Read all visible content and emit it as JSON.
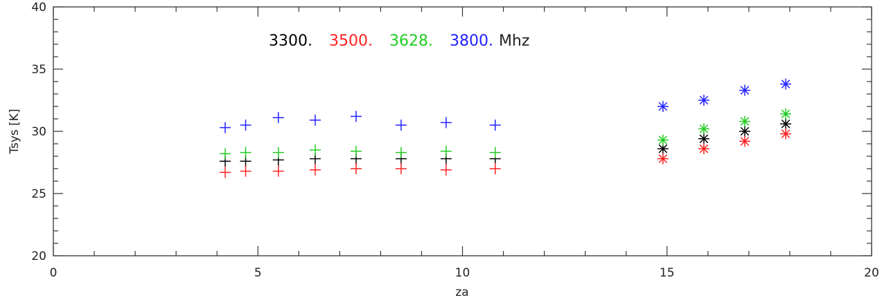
{
  "chart_data": {
    "type": "scatter",
    "title": "",
    "xlabel": "za",
    "ylabel": "Tsys [K]",
    "xlim": [
      0,
      20
    ],
    "ylim": [
      20,
      40
    ],
    "x_ticks": [
      0,
      5,
      10,
      15,
      20
    ],
    "y_ticks": [
      20,
      25,
      30,
      35,
      40
    ],
    "x_minor_step": 1,
    "y_minor_step": 1,
    "grid": false,
    "legend": {
      "placement": "top-left",
      "entries": [
        {
          "text": "3300.",
          "color": "#000000"
        },
        {
          "text": "3500.",
          "color": "#ff2020"
        },
        {
          "text": "3628.",
          "color": "#20cc20"
        },
        {
          "text": "3800.",
          "color": "#2020ff"
        }
      ],
      "suffix": "Mhz",
      "suffix_color": "#222222"
    },
    "series": [
      {
        "color": "#000000",
        "groups": [
          {
            "marker": "plus",
            "x": [
              4.2,
              4.7,
              5.5,
              6.4,
              7.4,
              8.5,
              9.6,
              10.8
            ],
            "y": [
              27.6,
              27.6,
              27.7,
              27.8,
              27.8,
              27.8,
              27.8,
              27.8
            ]
          },
          {
            "marker": "asterisk",
            "x": [
              14.9,
              15.9,
              16.9,
              17.9
            ],
            "y": [
              28.6,
              29.4,
              30.0,
              30.6
            ]
          }
        ]
      },
      {
        "color": "#ff2020",
        "groups": [
          {
            "marker": "plus",
            "x": [
              4.2,
              4.7,
              5.5,
              6.4,
              7.4,
              8.5,
              9.6,
              10.8
            ],
            "y": [
              26.7,
              26.8,
              26.8,
              26.9,
              27.0,
              27.0,
              26.9,
              27.0
            ]
          },
          {
            "marker": "asterisk",
            "x": [
              14.9,
              15.9,
              16.9,
              17.9
            ],
            "y": [
              27.8,
              28.6,
              29.2,
              29.8
            ]
          }
        ]
      },
      {
        "color": "#20cc20",
        "groups": [
          {
            "marker": "plus",
            "x": [
              4.2,
              4.7,
              5.5,
              6.4,
              7.4,
              8.5,
              9.6,
              10.8
            ],
            "y": [
              28.2,
              28.3,
              28.3,
              28.5,
              28.4,
              28.3,
              28.4,
              28.3
            ]
          },
          {
            "marker": "asterisk",
            "x": [
              14.9,
              15.9,
              16.9,
              17.9
            ],
            "y": [
              29.3,
              30.2,
              30.8,
              31.4
            ]
          }
        ]
      },
      {
        "color": "#2020ff",
        "groups": [
          {
            "marker": "plus",
            "x": [
              4.2,
              4.7,
              5.5,
              6.4,
              7.4,
              8.5,
              9.6,
              10.8
            ],
            "y": [
              30.3,
              30.5,
              31.1,
              30.9,
              31.2,
              30.5,
              30.7,
              30.5
            ]
          },
          {
            "marker": "asterisk",
            "x": [
              14.9,
              15.9,
              16.9,
              17.9
            ],
            "y": [
              32.0,
              32.5,
              33.3,
              33.8
            ]
          }
        ]
      }
    ]
  }
}
